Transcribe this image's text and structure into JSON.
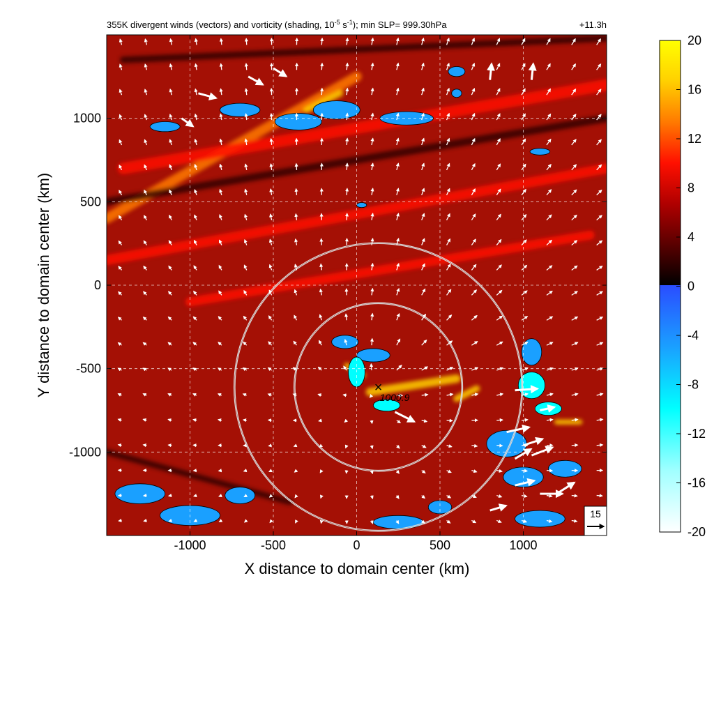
{
  "chart_data": {
    "type": "heatmap",
    "title": "355K divergent winds (vectors) and vorticity (shading, 10",
    "title_exp1": "-5",
    "title_mid": " s",
    "title_exp2": "-1",
    "title_end": "); min SLP= 999.30hPa",
    "time_label": "+11.3h",
    "xlabel": "X distance to domain center (km)",
    "ylabel": "Y distance to domain center (km)",
    "xlim": [
      -1500,
      1500
    ],
    "ylim": [
      -1500,
      1500
    ],
    "x_ticks": [
      -1000,
      -500,
      0,
      500,
      1000
    ],
    "y_ticks": [
      1000,
      500,
      0,
      -500,
      -1000
    ],
    "x_tick_labels": [
      "-1000",
      "-500",
      "0",
      "500",
      "1000"
    ],
    "y_tick_labels": [
      "1000",
      "500",
      "0",
      "-500",
      "-1000"
    ],
    "grid": true,
    "grid_style": "dashed",
    "colorbar": {
      "min": -20,
      "max": 20,
      "ticks": [
        20,
        16,
        12,
        8,
        4,
        0,
        -4,
        -8,
        -12,
        -16,
        -20
      ],
      "tick_labels": [
        "20",
        "16",
        "12",
        "8",
        "4",
        "0",
        "-4",
        "-8",
        "-12",
        "-16",
        "-20"
      ],
      "colors_positive": [
        "#000000",
        "#5a0000",
        "#b00000",
        "#ff1000",
        "#ff7a00",
        "#ffd000",
        "#ffff00"
      ],
      "colors_negative": [
        "#2a4dff",
        "#1aa0ff",
        "#00ffff",
        "#a0ffff",
        "#ffffff"
      ]
    },
    "background_color": "#a41005",
    "center_marker": {
      "x": 130,
      "y": -610,
      "label": "1000.9"
    },
    "rings": [
      {
        "cx": 130,
        "cy": -610,
        "radius_km": 500
      },
      {
        "cx": 130,
        "cy": -610,
        "radius_km": 860
      }
    ],
    "vector_reference": {
      "label": "15",
      "magnitude": 15
    },
    "vector_grid_spacing_km": 150,
    "strong_vectors": [
      {
        "x": 230,
        "y": -760,
        "u": 12,
        "v": -6
      },
      {
        "x": 950,
        "y": -630,
        "u": 14,
        "v": 1
      },
      {
        "x": 900,
        "y": -880,
        "u": 14,
        "v": 3
      },
      {
        "x": 1000,
        "y": -960,
        "u": 12,
        "v": 4
      },
      {
        "x": 950,
        "y": -1040,
        "u": 10,
        "v": 6
      },
      {
        "x": 1050,
        "y": -1020,
        "u": 13,
        "v": 5
      },
      {
        "x": 1100,
        "y": -1250,
        "u": 14,
        "v": 0
      },
      {
        "x": 1200,
        "y": -1250,
        "u": 11,
        "v": 7
      },
      {
        "x": 950,
        "y": -1200,
        "u": 12,
        "v": 3
      },
      {
        "x": -950,
        "y": 1150,
        "u": 11,
        "v": -3
      },
      {
        "x": -650,
        "y": 1250,
        "u": 9,
        "v": -5
      },
      {
        "x": -500,
        "y": 1300,
        "u": 8,
        "v": -5
      },
      {
        "x": -1050,
        "y": 1000,
        "u": 7,
        "v": -5
      },
      {
        "x": 1100,
        "y": -750,
        "u": 9,
        "v": 2
      },
      {
        "x": 800,
        "y": -1350,
        "u": 10,
        "v": 3
      },
      {
        "x": 1050,
        "y": 1230,
        "u": 1,
        "v": 10
      },
      {
        "x": 800,
        "y": 1230,
        "u": 1,
        "v": 10
      }
    ],
    "positive_streaks": [
      {
        "x1": -1500,
        "y1": 400,
        "x2": 0,
        "y2": 1250,
        "w": 60,
        "val": 12
      },
      {
        "x1": -1400,
        "y1": 700,
        "x2": 1500,
        "y2": 1200,
        "w": 70,
        "val": 10
      },
      {
        "x1": -1500,
        "y1": 150,
        "x2": 1500,
        "y2": 700,
        "w": 60,
        "val": 9
      },
      {
        "x1": -1000,
        "y1": -100,
        "x2": 1400,
        "y2": 300,
        "w": 55,
        "val": 10
      },
      {
        "x1": -300,
        "y1": 1050,
        "x2": -100,
        "y2": 1150,
        "w": 40,
        "val": 18
      },
      {
        "x1": 80,
        "y1": -640,
        "x2": 600,
        "y2": -560,
        "w": 50,
        "val": 16
      },
      {
        "x1": 600,
        "y1": -680,
        "x2": 720,
        "y2": -620,
        "w": 40,
        "val": 18
      },
      {
        "x1": 1200,
        "y1": -820,
        "x2": 1340,
        "y2": -820,
        "w": 30,
        "val": 18
      },
      {
        "x1": -60,
        "y1": -480,
        "x2": 40,
        "y2": -540,
        "w": 30,
        "val": 18
      }
    ],
    "dark_streaks": [
      {
        "x1": -1500,
        "y1": 500,
        "x2": 1500,
        "y2": 1000,
        "w": 45
      },
      {
        "x1": -1400,
        "y1": 1350,
        "x2": 1500,
        "y2": 1480,
        "w": 40
      },
      {
        "x1": -1500,
        "y1": -1000,
        "x2": -400,
        "y2": -1300,
        "w": 35
      }
    ],
    "negative_blobs": [
      {
        "x": -700,
        "y": 1050,
        "rx": 120,
        "ry": 40,
        "val": -5
      },
      {
        "x": -350,
        "y": 980,
        "rx": 140,
        "ry": 50,
        "val": -4
      },
      {
        "x": -120,
        "y": 1050,
        "rx": 140,
        "ry": 55,
        "val": -5
      },
      {
        "x": 300,
        "y": 1000,
        "rx": 160,
        "ry": 40,
        "val": -5
      },
      {
        "x": -1150,
        "y": 950,
        "rx": 90,
        "ry": 30,
        "val": -4
      },
      {
        "x": 1100,
        "y": 800,
        "rx": 60,
        "ry": 20,
        "val": -4
      },
      {
        "x": 600,
        "y": 1280,
        "rx": 50,
        "ry": 30,
        "val": -5
      },
      {
        "x": 30,
        "y": 480,
        "rx": 30,
        "ry": 15,
        "val": -4
      },
      {
        "x": -70,
        "y": -340,
        "rx": 80,
        "ry": 40,
        "val": -6
      },
      {
        "x": 100,
        "y": -420,
        "rx": 100,
        "ry": 40,
        "val": -5
      },
      {
        "x": 0,
        "y": -520,
        "rx": 50,
        "ry": 90,
        "val": -12
      },
      {
        "x": 180,
        "y": -720,
        "rx": 80,
        "ry": 35,
        "val": -8
      },
      {
        "x": 1050,
        "y": -400,
        "rx": 60,
        "ry": 80,
        "val": -6
      },
      {
        "x": 1050,
        "y": -600,
        "rx": 80,
        "ry": 80,
        "val": -10
      },
      {
        "x": 1150,
        "y": -740,
        "rx": 80,
        "ry": 40,
        "val": -8
      },
      {
        "x": 900,
        "y": -950,
        "rx": 120,
        "ry": 80,
        "val": -6
      },
      {
        "x": 1000,
        "y": -1150,
        "rx": 120,
        "ry": 60,
        "val": -5
      },
      {
        "x": 1250,
        "y": -1100,
        "rx": 100,
        "ry": 50,
        "val": -6
      },
      {
        "x": -1300,
        "y": -1250,
        "rx": 150,
        "ry": 60,
        "val": -5
      },
      {
        "x": -1000,
        "y": -1380,
        "rx": 180,
        "ry": 60,
        "val": -5
      },
      {
        "x": -700,
        "y": -1260,
        "rx": 90,
        "ry": 50,
        "val": -4
      },
      {
        "x": 500,
        "y": -1330,
        "rx": 70,
        "ry": 40,
        "val": -6
      },
      {
        "x": 250,
        "y": -1420,
        "rx": 150,
        "ry": 40,
        "val": -5
      },
      {
        "x": 1100,
        "y": -1400,
        "rx": 150,
        "ry": 50,
        "val": -4
      },
      {
        "x": 600,
        "y": 1150,
        "rx": 30,
        "ry": 25,
        "val": -5
      }
    ]
  }
}
